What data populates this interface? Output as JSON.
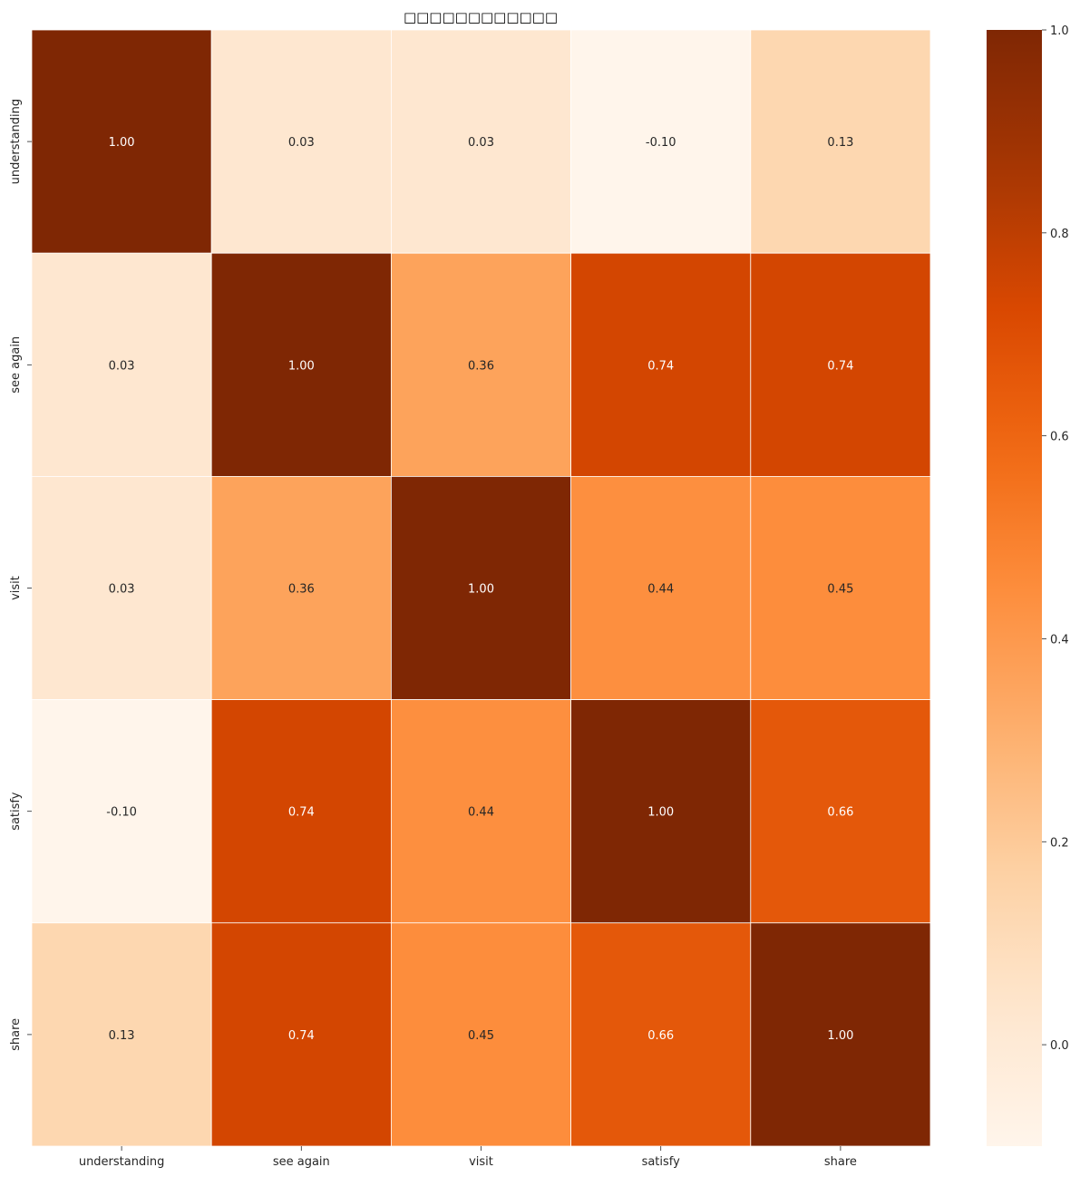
{
  "chart_data": {
    "type": "heatmap",
    "title": "□□□□□□□□□□□□",
    "row_labels": [
      "understanding",
      "see again",
      "visit",
      "satisfy",
      "share"
    ],
    "col_labels": [
      "understanding",
      "see again",
      "visit",
      "satisfy",
      "share"
    ],
    "values": [
      [
        1.0,
        0.03,
        0.03,
        -0.1,
        0.13
      ],
      [
        0.03,
        1.0,
        0.36,
        0.74,
        0.74
      ],
      [
        0.03,
        0.36,
        1.0,
        0.44,
        0.45
      ],
      [
        -0.1,
        0.74,
        0.44,
        1.0,
        0.66
      ],
      [
        0.13,
        0.74,
        0.45,
        0.66,
        1.0
      ]
    ],
    "value_labels": [
      [
        "1.00",
        "0.03",
        "0.03",
        "-0.10",
        "0.13"
      ],
      [
        "0.03",
        "1.00",
        "0.36",
        "0.74",
        "0.74"
      ],
      [
        "0.03",
        "0.36",
        "1.00",
        "0.44",
        "0.45"
      ],
      [
        "-0.10",
        "0.74",
        "0.44",
        "1.00",
        "0.66"
      ],
      [
        "0.13",
        "0.74",
        "0.45",
        "0.66",
        "1.00"
      ]
    ],
    "colorbar": {
      "colormap": "Oranges",
      "vmin": -0.1,
      "vmax": 1.0,
      "ticks": [
        0.0,
        0.2,
        0.4,
        0.6,
        0.8,
        1.0
      ],
      "tick_labels": [
        "0.0",
        "0.2",
        "0.4",
        "0.6",
        "0.8",
        "1.0"
      ]
    },
    "grid_line_color": "#ffffff",
    "text_color_light": "#ffffff",
    "text_color_dark": "#262626"
  }
}
